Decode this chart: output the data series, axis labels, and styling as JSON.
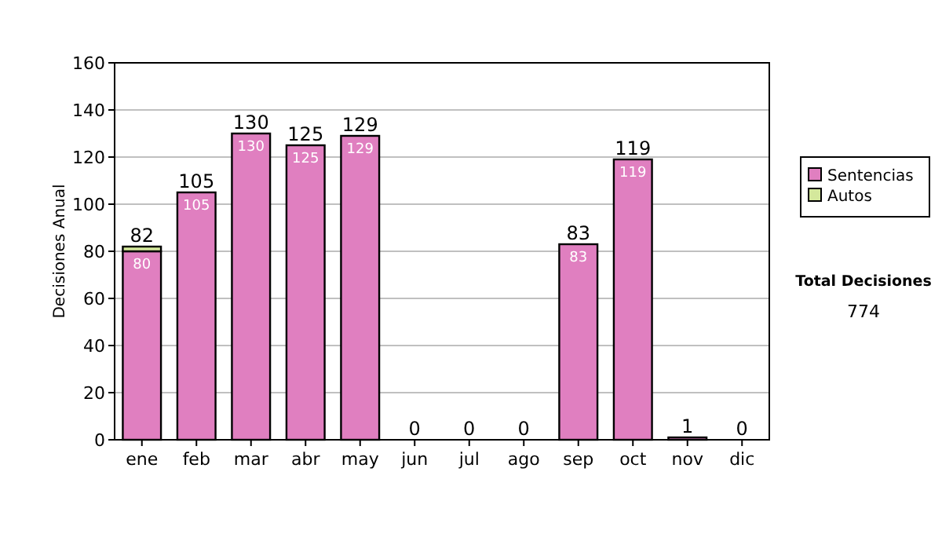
{
  "chart_data": {
    "type": "bar",
    "stacked": true,
    "ylabel": "Decisiones Anual",
    "categories": [
      "ene",
      "feb",
      "mar",
      "abr",
      "may",
      "jun",
      "jul",
      "ago",
      "sep",
      "oct",
      "nov",
      "dic"
    ],
    "series": [
      {
        "name": "Sentencias",
        "color": "#e07fc0",
        "values": [
          80,
          105,
          130,
          125,
          129,
          0,
          0,
          0,
          83,
          119,
          1,
          0
        ],
        "value_labels": [
          "80",
          "105",
          "130",
          "125",
          "129",
          null,
          null,
          null,
          "83",
          "119",
          null,
          null
        ]
      },
      {
        "name": "Autos",
        "color": "#d4e89c",
        "values": [
          2,
          0,
          0,
          0,
          0,
          0,
          0,
          0,
          0,
          0,
          0,
          0
        ]
      }
    ],
    "totals": [
      "82",
      "105",
      "130",
      "125",
      "129",
      "0",
      "0",
      "0",
      "83",
      "119",
      "1",
      "0"
    ],
    "ylim": [
      0,
      160
    ],
    "yticks": [
      0,
      20,
      40,
      60,
      80,
      100,
      120,
      140,
      160
    ],
    "grid": "y",
    "legend": "right",
    "annotations": [
      "Total Decisiones",
      "774"
    ]
  }
}
